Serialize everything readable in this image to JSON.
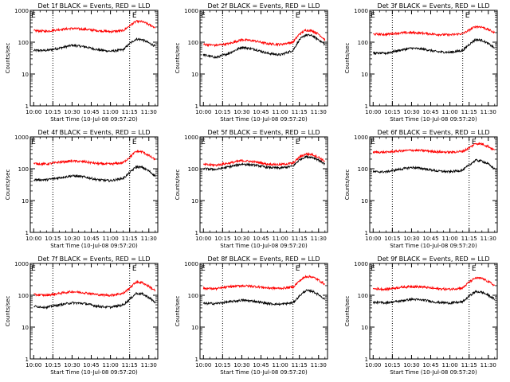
{
  "panel_titles": [
    "Det 1f BLACK = Events, RED = LLD",
    "Det 2f BLACK = Events, RED = LLD",
    "Det 3f BLACK = Events, RED = LLD",
    "Det 4f BLACK = Events, RED = LLD",
    "Det 5f BLACK = Events, RED = LLD",
    "Det 6f BLACK = Events, RED = LLD",
    "Det 7f BLACK = Events, RED = LLD",
    "Det 8f BLACK = Events, RED = LLD",
    "Det 9f BLACK = Events, RED = LLD"
  ],
  "ylabel": "Counts/sec",
  "xlabel": "Start Time (10-Jul-08 09:57:20)",
  "x_tick_labels": [
    "10:00",
    "10:15",
    "10:30",
    "10:45",
    "11:00",
    "11:15",
    "11:30"
  ],
  "y_tick_labels": [
    "1",
    "10",
    "100",
    "1000"
  ],
  "marker_label": "E",
  "colors": {
    "events": "#000000",
    "lld": "#ff0000",
    "axes": "#000000",
    "background": "#ffffff"
  },
  "chart_data": [
    {
      "type": "line",
      "title": "Det 1f BLACK = Events, RED = LLD",
      "xlabel": "Start Time (10-Jul-08 09:57:20)",
      "ylabel": "Counts/sec",
      "xlim": [
        "09:57:20",
        "11:37"
      ],
      "ylim": [
        1,
        1000
      ],
      "yscale": "log",
      "grid": false,
      "vlines": [
        "10:15",
        "11:15"
      ],
      "series": [
        {
          "color": "#000000",
          "x": [
            "10:00",
            "10:10",
            "10:20",
            "10:30",
            "10:40",
            "10:50",
            "11:00",
            "11:10",
            "11:15",
            "11:20",
            "11:25",
            "11:30",
            "11:35"
          ],
          "values": [
            55,
            55,
            65,
            80,
            72,
            58,
            52,
            58,
            90,
            125,
            120,
            95,
            75
          ]
        },
        {
          "color": "#ff0000",
          "x": [
            "10:00",
            "10:10",
            "10:20",
            "10:30",
            "10:40",
            "10:50",
            "11:00",
            "11:10",
            "11:15",
            "11:20",
            "11:25",
            "11:30",
            "11:35"
          ],
          "values": [
            230,
            220,
            250,
            270,
            255,
            230,
            215,
            230,
            330,
            450,
            440,
            360,
            290
          ]
        }
      ]
    },
    {
      "type": "line",
      "title": "Det 2f BLACK = Events, RED = LLD",
      "xlabel": "Start Time (10-Jul-08 09:57:20)",
      "ylabel": "Counts/sec",
      "xlim": [
        "09:57:20",
        "11:37"
      ],
      "ylim": [
        1,
        1000
      ],
      "yscale": "log",
      "grid": false,
      "vlines": [
        "10:15",
        "11:10"
      ],
      "series": [
        {
          "color": "#000000",
          "x": [
            "10:00",
            "10:10",
            "10:20",
            "10:30",
            "10:40",
            "10:50",
            "11:00",
            "11:10",
            "11:15",
            "11:20",
            "11:25",
            "11:30",
            "11:35"
          ],
          "values": [
            40,
            33,
            45,
            70,
            60,
            45,
            40,
            55,
            120,
            170,
            160,
            120,
            85
          ]
        },
        {
          "color": "#ff0000",
          "x": [
            "10:00",
            "10:10",
            "10:20",
            "10:30",
            "10:40",
            "10:50",
            "11:00",
            "11:10",
            "11:15",
            "11:20",
            "11:25",
            "11:30",
            "11:35"
          ],
          "values": [
            85,
            80,
            90,
            120,
            110,
            90,
            85,
            100,
            180,
            240,
            230,
            180,
            120
          ]
        }
      ]
    },
    {
      "type": "line",
      "title": "Det 3f BLACK = Events, RED = LLD",
      "xlabel": "Start Time (10-Jul-08 09:57:20)",
      "ylabel": "Counts/sec",
      "xlim": [
        "09:57:20",
        "11:37"
      ],
      "ylim": [
        1,
        1000
      ],
      "yscale": "log",
      "grid": false,
      "vlines": [
        "10:15",
        "11:10"
      ],
      "series": [
        {
          "color": "#000000",
          "x": [
            "10:00",
            "10:10",
            "10:20",
            "10:30",
            "10:40",
            "10:50",
            "11:00",
            "11:10",
            "11:15",
            "11:20",
            "11:25",
            "11:30",
            "11:35"
          ],
          "values": [
            45,
            45,
            55,
            65,
            60,
            50,
            48,
            55,
            85,
            120,
            115,
            90,
            65
          ]
        },
        {
          "color": "#ff0000",
          "x": [
            "10:00",
            "10:10",
            "10:20",
            "10:30",
            "10:40",
            "10:50",
            "11:00",
            "11:10",
            "11:15",
            "11:20",
            "11:25",
            "11:30",
            "11:35"
          ],
          "values": [
            180,
            175,
            195,
            200,
            190,
            175,
            170,
            185,
            240,
            310,
            300,
            250,
            195
          ]
        }
      ]
    },
    {
      "type": "line",
      "title": "Det 4f BLACK = Events, RED = LLD",
      "xlabel": "Start Time (10-Jul-08 09:57:20)",
      "ylabel": "Counts/sec",
      "xlim": [
        "09:57:20",
        "11:37"
      ],
      "ylim": [
        1,
        1000
      ],
      "yscale": "log",
      "grid": false,
      "vlines": [
        "10:15",
        "11:15"
      ],
      "series": [
        {
          "color": "#000000",
          "x": [
            "10:00",
            "10:10",
            "10:20",
            "10:30",
            "10:40",
            "10:50",
            "11:00",
            "11:10",
            "11:15",
            "11:20",
            "11:25",
            "11:30",
            "11:35"
          ],
          "values": [
            45,
            45,
            52,
            60,
            55,
            45,
            42,
            50,
            75,
            115,
            110,
            85,
            60
          ]
        },
        {
          "color": "#ff0000",
          "x": [
            "10:00",
            "10:10",
            "10:20",
            "10:30",
            "10:40",
            "10:50",
            "11:00",
            "11:10",
            "11:15",
            "11:20",
            "11:25",
            "11:30",
            "11:35"
          ],
          "values": [
            145,
            140,
            160,
            175,
            165,
            145,
            140,
            155,
            230,
            350,
            340,
            260,
            190
          ]
        }
      ]
    },
    {
      "type": "line",
      "title": "Det 5f BLACK = Events, RED = LLD",
      "xlabel": "Start Time (10-Jul-08 09:57:20)",
      "ylabel": "Counts/sec",
      "xlim": [
        "09:57:20",
        "11:37"
      ],
      "ylim": [
        1,
        1000
      ],
      "yscale": "log",
      "grid": false,
      "vlines": [
        "10:15",
        "11:10"
      ],
      "series": [
        {
          "color": "#000000",
          "x": [
            "10:00",
            "10:10",
            "10:20",
            "10:30",
            "10:40",
            "10:50",
            "11:00",
            "11:10",
            "11:15",
            "11:20",
            "11:25",
            "11:30",
            "11:35"
          ],
          "values": [
            100,
            95,
            115,
            140,
            130,
            110,
            105,
            120,
            190,
            240,
            230,
            190,
            140
          ]
        },
        {
          "color": "#ff0000",
          "x": [
            "10:00",
            "10:10",
            "10:20",
            "10:30",
            "10:40",
            "10:50",
            "11:00",
            "11:10",
            "11:15",
            "11:20",
            "11:25",
            "11:30",
            "11:35"
          ],
          "values": [
            135,
            130,
            150,
            180,
            165,
            140,
            135,
            150,
            230,
            290,
            280,
            230,
            170
          ]
        }
      ]
    },
    {
      "type": "line",
      "title": "Det 6f BLACK = Events, RED = LLD",
      "xlabel": "Start Time (10-Jul-08 09:57:20)",
      "ylabel": "Counts/sec",
      "xlim": [
        "09:57:20",
        "11:37"
      ],
      "ylim": [
        1,
        1000
      ],
      "yscale": "log",
      "grid": false,
      "vlines": [
        "10:15",
        "11:15"
      ],
      "series": [
        {
          "color": "#000000",
          "x": [
            "10:00",
            "10:10",
            "10:20",
            "10:30",
            "10:40",
            "10:50",
            "11:00",
            "11:10",
            "11:15",
            "11:20",
            "11:25",
            "11:30",
            "11:35"
          ],
          "values": [
            80,
            80,
            95,
            110,
            100,
            85,
            80,
            90,
            130,
            185,
            175,
            140,
            100
          ]
        },
        {
          "color": "#ff0000",
          "x": [
            "10:00",
            "10:10",
            "10:20",
            "10:30",
            "10:40",
            "10:50",
            "11:00",
            "11:10",
            "11:15",
            "11:20",
            "11:25",
            "11:30",
            "11:35"
          ],
          "values": [
            330,
            330,
            360,
            380,
            370,
            340,
            330,
            350,
            450,
            620,
            600,
            500,
            380
          ]
        }
      ]
    },
    {
      "type": "line",
      "title": "Det 7f BLACK = Events, RED = LLD",
      "xlabel": "Start Time (10-Jul-08 09:57:20)",
      "ylabel": "Counts/sec",
      "xlim": [
        "09:57:20",
        "11:37"
      ],
      "ylim": [
        1,
        1000
      ],
      "yscale": "log",
      "grid": false,
      "vlines": [
        "10:15",
        "11:15"
      ],
      "series": [
        {
          "color": "#000000",
          "x": [
            "10:00",
            "10:10",
            "10:20",
            "10:30",
            "10:40",
            "10:50",
            "11:00",
            "11:10",
            "11:15",
            "11:20",
            "11:25",
            "11:30",
            "11:35"
          ],
          "values": [
            45,
            42,
            50,
            58,
            55,
            45,
            42,
            50,
            75,
            115,
            110,
            85,
            60
          ]
        },
        {
          "color": "#ff0000",
          "x": [
            "10:00",
            "10:10",
            "10:20",
            "10:30",
            "10:40",
            "10:50",
            "11:00",
            "11:10",
            "11:15",
            "11:20",
            "11:25",
            "11:30",
            "11:35"
          ],
          "values": [
            105,
            100,
            115,
            130,
            120,
            105,
            100,
            115,
            170,
            260,
            250,
            190,
            140
          ]
        }
      ]
    },
    {
      "type": "line",
      "title": "Det 8f BLACK = Events, RED = LLD",
      "xlabel": "Start Time (10-Jul-08 09:57:20)",
      "ylabel": "Counts/sec",
      "xlim": [
        "09:57:20",
        "11:37"
      ],
      "ylim": [
        1,
        1000
      ],
      "yscale": "log",
      "grid": false,
      "vlines": [
        "10:15",
        "11:10"
      ],
      "series": [
        {
          "color": "#000000",
          "x": [
            "10:00",
            "10:10",
            "10:20",
            "10:30",
            "10:40",
            "10:50",
            "11:00",
            "11:10",
            "11:15",
            "11:20",
            "11:25",
            "11:30",
            "11:35"
          ],
          "values": [
            55,
            55,
            62,
            70,
            65,
            55,
            52,
            58,
            95,
            140,
            135,
            105,
            75
          ]
        },
        {
          "color": "#ff0000",
          "x": [
            "10:00",
            "10:10",
            "10:20",
            "10:30",
            "10:40",
            "10:50",
            "11:00",
            "11:10",
            "11:15",
            "11:20",
            "11:25",
            "11:30",
            "11:35"
          ],
          "values": [
            165,
            160,
            185,
            200,
            190,
            170,
            165,
            180,
            280,
            390,
            380,
            300,
            220
          ]
        }
      ]
    },
    {
      "type": "line",
      "title": "Det 9f BLACK = Events, RED = LLD",
      "xlabel": "Start Time (10-Jul-08 09:57:20)",
      "ylabel": "Counts/sec",
      "xlim": [
        "09:57:20",
        "11:37"
      ],
      "ylim": [
        1,
        1000
      ],
      "yscale": "log",
      "grid": false,
      "vlines": [
        "10:15",
        "11:15"
      ],
      "series": [
        {
          "color": "#000000",
          "x": [
            "10:00",
            "10:10",
            "10:20",
            "10:30",
            "10:40",
            "10:50",
            "11:00",
            "11:10",
            "11:15",
            "11:20",
            "11:25",
            "11:30",
            "11:35"
          ],
          "values": [
            60,
            58,
            65,
            75,
            70,
            60,
            57,
            62,
            95,
            130,
            125,
            100,
            75
          ]
        },
        {
          "color": "#ff0000",
          "x": [
            "10:00",
            "10:10",
            "10:20",
            "10:30",
            "10:40",
            "10:50",
            "11:00",
            "11:10",
            "11:15",
            "11:20",
            "11:25",
            "11:30",
            "11:35"
          ],
          "values": [
            160,
            155,
            175,
            190,
            180,
            160,
            155,
            170,
            260,
            350,
            340,
            270,
            200
          ]
        }
      ]
    }
  ]
}
